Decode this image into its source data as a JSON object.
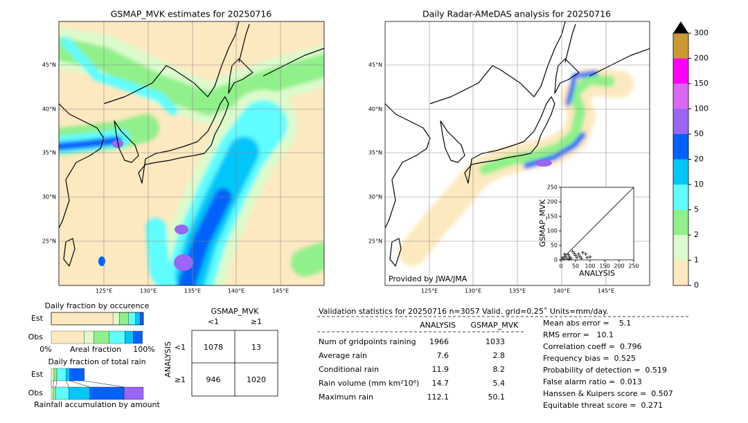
{
  "left_map": {
    "title": "GSMAP_MVK estimates for 20250716",
    "lat_labels": [
      "45°N",
      "40°N",
      "35°N",
      "30°N",
      "25°N"
    ],
    "lon_labels": [
      "125°E",
      "130°E",
      "135°E",
      "140°E",
      "145°E"
    ]
  },
  "right_map": {
    "title": "Daily Radar-AMeDAS analysis for 20250716",
    "lat_labels": [
      "45°N",
      "40°N",
      "35°N",
      "30°N",
      "25°N"
    ],
    "lon_labels": [
      "125°E",
      "130°E",
      "135°E",
      "140°E",
      "145°E"
    ],
    "credit": "Provided by JWA/JMA"
  },
  "scatter": {
    "xlabel": "ANALYSIS",
    "ylabel": "GSMAP_MVK",
    "xlim": [
      0,
      250
    ],
    "ylim": [
      0,
      250
    ],
    "xticks": [
      0,
      50,
      100,
      150,
      200,
      250
    ],
    "yticks": [
      0,
      50,
      100,
      150,
      200,
      250
    ],
    "x": [
      60,
      75,
      85,
      90,
      100,
      40,
      50,
      30,
      20,
      10,
      5,
      15,
      25,
      35,
      45,
      55,
      65,
      70,
      12,
      28
    ],
    "y": [
      20,
      25,
      20,
      8,
      10,
      30,
      15,
      10,
      5,
      3,
      8,
      12,
      18,
      5,
      22,
      8,
      12,
      5,
      20,
      2
    ]
  },
  "colorbar": {
    "ticks": [
      0,
      1,
      2,
      5,
      10,
      20,
      50,
      100,
      150,
      200,
      300
    ],
    "colors": [
      "#fde9c0",
      "#dcfbcc",
      "#90f08a",
      "#5ffdfd",
      "#00c6fa",
      "#0062fa",
      "#9966f5",
      "#dc66f5",
      "#ff00ff",
      "#cc9933"
    ],
    "extend_color": "#000000"
  },
  "occurrence": {
    "title": "Daily fraction by occurence",
    "xlim": [
      0,
      100
    ],
    "colors": [
      "#fde9c0",
      "#dcfbcc",
      "#90f08a",
      "#5ffdfd",
      "#00c6fa",
      "#0062fa"
    ],
    "rows": [
      {
        "name": "Est",
        "values": [
          67,
          7,
          10,
          7.5,
          5,
          3.5
        ]
      },
      {
        "name": "Obs",
        "values": [
          36,
          10,
          17,
          17,
          9,
          10
        ]
      }
    ],
    "axis_left": "0%",
    "axis_label": "Areal fraction",
    "axis_right": "100%"
  },
  "total_rain": {
    "title": "Daily fraction of total rain",
    "xlim": [
      0,
      100
    ],
    "colors": [
      "#dcfbcc",
      "#90f08a",
      "#5ffdfd",
      "#00c6fa",
      "#0062fa",
      "#9966f5"
    ],
    "rows": [
      {
        "name": "Est",
        "values": [
          3,
          3,
          10,
          4,
          16
        ]
      },
      {
        "name": "Obs",
        "values": [
          2,
          3,
          14,
          23,
          37,
          21
        ]
      }
    ],
    "caption": "Rainfall accumulation by amount"
  },
  "contingency": {
    "title": "GSMAP_MVK",
    "col_labels": [
      "<1",
      "≥1"
    ],
    "row_title": "ANALYSIS",
    "row_labels": [
      "<1",
      "≥1"
    ],
    "cells": [
      [
        1078,
        13
      ],
      [
        946,
        1020
      ]
    ]
  },
  "stats": {
    "header": "Validation statistics for 20250716  n=3057 Valid. grid=0.25˚ Units=mm/day.",
    "columns": [
      "ANALYSIS",
      "GSMAP_MVK"
    ],
    "rows": [
      {
        "label": "Num of gridpoints raining",
        "values": [
          1966,
          1033
        ]
      },
      {
        "label": "Average rain",
        "values": [
          7.6,
          2.8
        ]
      },
      {
        "label": "Conditional rain",
        "values": [
          11.9,
          8.2
        ]
      },
      {
        "label": "Rain volume (mm km²10⁶)",
        "values": [
          14.7,
          5.4
        ]
      },
      {
        "label": "Maximum rain",
        "values": [
          112.1,
          50.1
        ]
      }
    ],
    "scores": [
      "Mean abs error =    5.1",
      "RMS error =   10.1",
      "Correlation coeff =  0.796",
      "Frequency bias =  0.525",
      "Probability of detection =  0.519",
      "False alarm ratio =  0.013",
      "Hanssen & Kuipers score =  0.507",
      "Equitable threat score =  0.271"
    ]
  }
}
